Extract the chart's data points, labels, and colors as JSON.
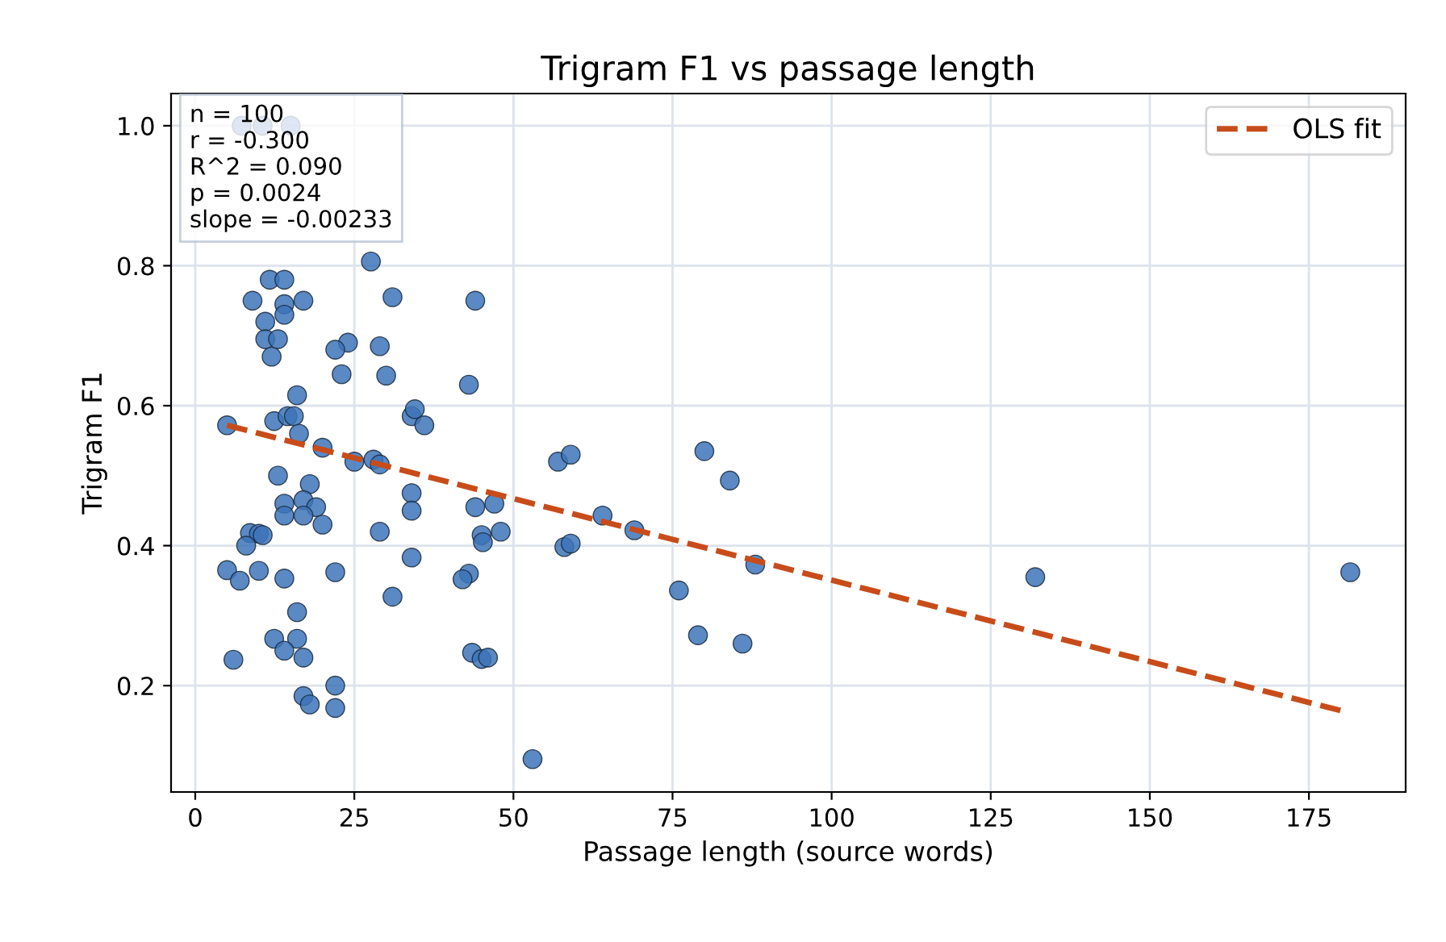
{
  "chart_data": {
    "type": "scatter",
    "title": "Trigram F1 vs passage length",
    "xlabel": "Passage length (source words)",
    "ylabel": "Trigram F1",
    "xlim": [
      -3.8,
      190.2
    ],
    "ylim": [
      0.048,
      1.046
    ],
    "xticks": [
      0,
      25,
      50,
      75,
      100,
      125,
      150,
      175
    ],
    "yticks": [
      0.2,
      0.4,
      0.6,
      0.8,
      {
        "value": 1,
        "label": "1.0"
      }
    ],
    "grid": true,
    "legend": "top right",
    "annotations": [
      "n = 100\nr = -0.300\nR^2 = 0.090\np = 0.0024\nslope = -0.00233"
    ],
    "series": [
      {
        "marker": "circle",
        "color": "#3d74b8",
        "x": [
          7.3,
          10.6,
          15,
          11.7,
          14,
          27.6,
          9,
          11,
          14,
          14,
          17,
          11,
          13,
          12,
          24,
          22,
          29,
          31,
          44,
          23,
          30,
          16,
          43,
          5,
          12.4,
          14.5,
          15.5,
          16.3,
          20,
          25,
          28,
          29,
          34,
          34.5,
          36,
          13,
          18,
          14,
          17,
          19,
          14,
          17,
          20,
          34,
          34,
          44,
          45,
          45.2,
          47,
          48,
          29,
          8.6,
          10,
          10.6,
          8,
          5,
          7,
          10,
          14,
          22,
          34,
          31,
          43,
          42,
          16,
          12.4,
          16,
          14,
          6,
          17,
          22,
          17,
          18,
          22,
          43.5,
          45,
          46,
          53,
          57,
          59,
          58,
          59,
          64,
          69,
          76,
          79,
          80,
          84,
          86,
          88,
          132,
          181.5
        ],
        "values": [
          1.0,
          1.0,
          1.0,
          0.78,
          0.78,
          0.806,
          0.75,
          0.72,
          0.745,
          0.73,
          0.75,
          0.695,
          0.695,
          0.67,
          0.69,
          0.68,
          0.685,
          0.755,
          0.75,
          0.645,
          0.643,
          0.615,
          0.63,
          0.572,
          0.578,
          0.585,
          0.585,
          0.56,
          0.54,
          0.52,
          0.523,
          0.516,
          0.585,
          0.595,
          0.572,
          0.5,
          0.488,
          0.46,
          0.465,
          0.455,
          0.443,
          0.443,
          0.43,
          0.475,
          0.45,
          0.455,
          0.415,
          0.405,
          0.46,
          0.42,
          0.42,
          0.418,
          0.417,
          0.415,
          0.4,
          0.365,
          0.35,
          0.364,
          0.353,
          0.362,
          0.383,
          0.327,
          0.36,
          0.352,
          0.305,
          0.267,
          0.267,
          0.25,
          0.237,
          0.24,
          0.2,
          0.185,
          0.173,
          0.168,
          0.247,
          0.238,
          0.24,
          0.095,
          0.52,
          0.53,
          0.398,
          0.403,
          0.443,
          0.422,
          0.336,
          0.272,
          0.535,
          0.493,
          0.26,
          0.373,
          0.355,
          0.362
        ]
      },
      {
        "type": "line",
        "marker": "none",
        "name": "OLS fit",
        "color": "#c84c1a",
        "line_style": "dashed",
        "x": [
          5,
          181
        ],
        "values": [
          0.572,
          0.162
        ]
      }
    ]
  }
}
